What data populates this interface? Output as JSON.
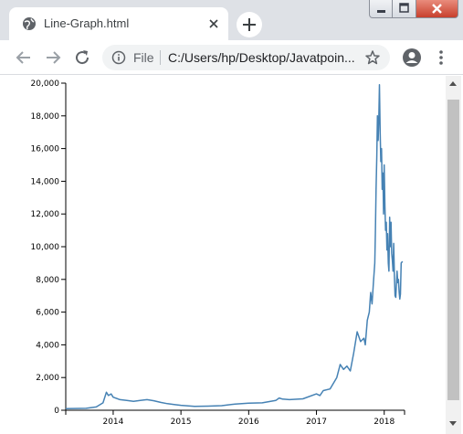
{
  "browser": {
    "tab_title": "Line-Graph.html",
    "scheme_label": "File",
    "url": "C:/Users/hp/Desktop/Javatpoin...",
    "icons": {
      "tab": "globe-icon",
      "close": "close-icon",
      "new_tab": "plus-icon",
      "back": "back-arrow-icon",
      "forward": "forward-arrow-icon",
      "reload": "reload-icon",
      "info": "info-icon",
      "bookmark": "star-icon",
      "profile": "profile-icon",
      "menu": "kebab-menu-icon"
    }
  },
  "chart_data": {
    "type": "line",
    "xlabel": "",
    "ylabel": "",
    "xlim": [
      2013.3,
      2018.3
    ],
    "ylim": [
      0,
      20000
    ],
    "x_ticks": [
      "2014",
      "2015",
      "2016",
      "2017",
      "2018"
    ],
    "y_ticks": [
      "0",
      "2,000",
      "4,000",
      "6,000",
      "8,000",
      "10,000",
      "12,000",
      "14,000",
      "16,000",
      "18,000",
      "20,000"
    ],
    "line_color": "#4682b4",
    "series": [
      {
        "x": [
          2013.3,
          2013.6,
          2013.75,
          2013.85,
          2013.9,
          2013.93,
          2013.97,
          2014.0,
          2014.1,
          2014.2,
          2014.3,
          2014.4,
          2014.5,
          2014.6,
          2014.7,
          2014.8,
          2014.9,
          2015.0,
          2015.2,
          2015.4,
          2015.6,
          2015.8,
          2016.0,
          2016.2,
          2016.4,
          2016.45,
          2016.5,
          2016.6,
          2016.8,
          2017.0,
          2017.05,
          2017.1,
          2017.2,
          2017.3,
          2017.35,
          2017.4,
          2017.45,
          2017.5,
          2017.55,
          2017.6,
          2017.65,
          2017.7,
          2017.72,
          2017.75,
          2017.78,
          2017.8,
          2017.82,
          2017.84,
          2017.86,
          2017.87,
          2017.88,
          2017.89,
          2017.9,
          2017.91,
          2017.92,
          2017.93,
          2017.94,
          2017.95,
          2017.96,
          2017.97,
          2017.98,
          2017.99,
          2018.0,
          2018.01,
          2018.02,
          2018.03,
          2018.04,
          2018.05,
          2018.06,
          2018.07,
          2018.08,
          2018.09,
          2018.1,
          2018.11,
          2018.12,
          2018.13,
          2018.14,
          2018.15,
          2018.16,
          2018.17,
          2018.18,
          2018.19,
          2018.2,
          2018.21,
          2018.22,
          2018.23,
          2018.24,
          2018.25,
          2018.27
        ],
        "y": [
          100,
          120,
          200,
          450,
          1100,
          900,
          1000,
          800,
          650,
          600,
          550,
          600,
          650,
          580,
          480,
          400,
          350,
          300,
          240,
          250,
          280,
          380,
          430,
          450,
          600,
          750,
          680,
          650,
          700,
          1000,
          900,
          1200,
          1300,
          2000,
          2800,
          2500,
          2700,
          2400,
          3500,
          4800,
          4200,
          4400,
          4000,
          5500,
          6000,
          7200,
          6500,
          7800,
          9000,
          11000,
          13500,
          15500,
          18000,
          16500,
          17800,
          19900,
          17000,
          15200,
          16000,
          13500,
          14500,
          12000,
          15000,
          12500,
          11000,
          11500,
          9800,
          10800,
          9000,
          8500,
          11800,
          10000,
          11500,
          9600,
          9200,
          8500,
          10200,
          8200,
          7000,
          6900,
          7700,
          8500,
          7800,
          8000,
          7200,
          6800,
          7100,
          9000,
          9100
        ]
      }
    ]
  }
}
